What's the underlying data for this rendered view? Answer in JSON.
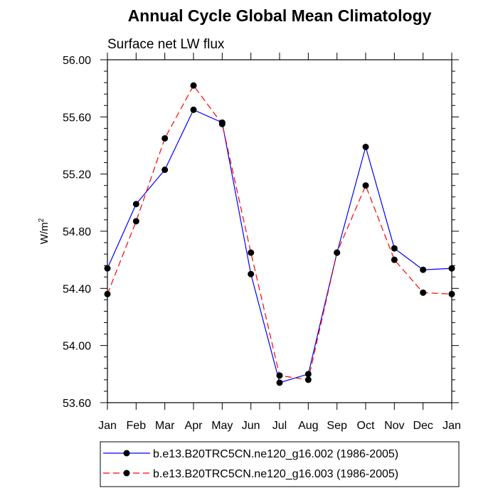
{
  "chart_data": {
    "type": "line",
    "title": "Annual Cycle Global Mean Climatology",
    "subtitle": "Surface net LW flux",
    "xlabel": "",
    "ylabel": "W/m",
    "ylabel_superscript": "2",
    "categories": [
      "Jan",
      "Feb",
      "Mar",
      "Apr",
      "May",
      "Jun",
      "Jul",
      "Aug",
      "Sep",
      "Oct",
      "Nov",
      "Dec",
      "Jan"
    ],
    "ylim": [
      53.6,
      56.0
    ],
    "yticks": [
      "53.60",
      "54.00",
      "54.40",
      "54.80",
      "55.20",
      "55.60",
      "56.00"
    ],
    "series": [
      {
        "name": "b.e13.B20TRC5CN.ne120_g16.002 (1986-2005)",
        "color": "#0000ff",
        "dash": "solid",
        "values": [
          54.54,
          54.99,
          55.23,
          55.65,
          55.56,
          54.5,
          53.74,
          53.8,
          54.65,
          55.39,
          54.68,
          54.53,
          54.54
        ]
      },
      {
        "name": "b.e13.B20TRC5CN.ne120_g16.003 (1986-2005)",
        "color": "#ff0000",
        "dash": "dashed",
        "values": [
          54.36,
          54.87,
          55.45,
          55.82,
          55.55,
          54.65,
          53.79,
          53.76,
          54.65,
          55.12,
          54.6,
          54.37,
          54.36
        ]
      }
    ],
    "grid": false,
    "legend": "bottom"
  }
}
